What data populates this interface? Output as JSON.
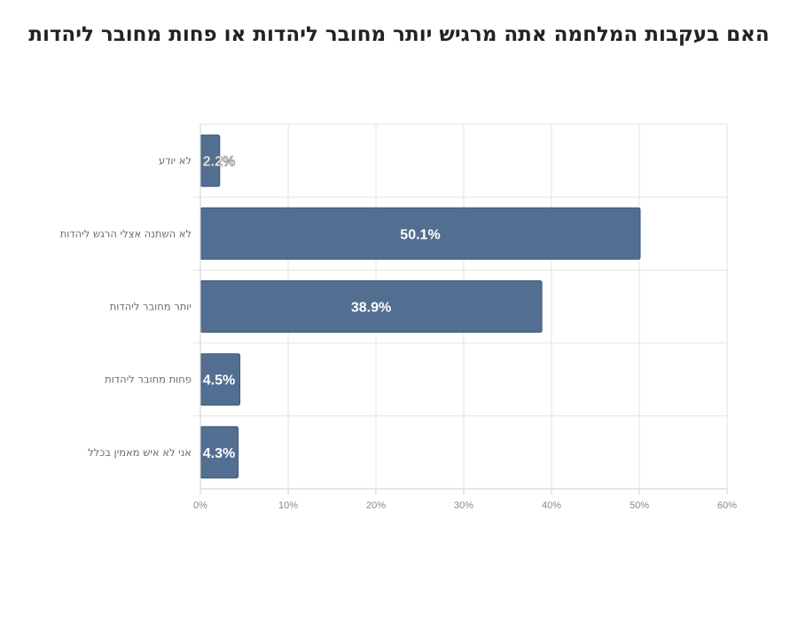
{
  "chart_data": {
    "type": "bar",
    "orientation": "horizontal",
    "title": "האם בעקבות המלחמה אתה מרגיש יותר מחובר ליהדות או פחות מחובר ליהדות",
    "xlabel": "",
    "ylabel": "",
    "categories": [
      "לא יודע",
      "לא השתנה אצלי הרגש ליהדות",
      "יותר מחובר ליהדות",
      "פחות מחובר ליהדות",
      "אני לא איש מאמין בכלל"
    ],
    "values": [
      2.2,
      50.1,
      38.9,
      4.5,
      4.3
    ],
    "data_labels": [
      "2.2%",
      "50.1%",
      "38.9%",
      "4.5%",
      "4.3%"
    ],
    "xlim": [
      0,
      60
    ],
    "x_ticks": [
      0,
      10,
      20,
      30,
      40,
      50,
      60
    ],
    "x_tick_labels": [
      "0%",
      "10%",
      "20%",
      "30%",
      "40%",
      "50%",
      "60%"
    ],
    "grid": true,
    "legend": "none",
    "colors": {
      "bar": "#526e91",
      "bar_edge": "#3f5a7c",
      "grid": "#e3e3e3",
      "tick_text": "#8a8a8a",
      "category_text": "#6b6b6b",
      "value_text": "#ffffff",
      "title_text": "#222222"
    }
  }
}
